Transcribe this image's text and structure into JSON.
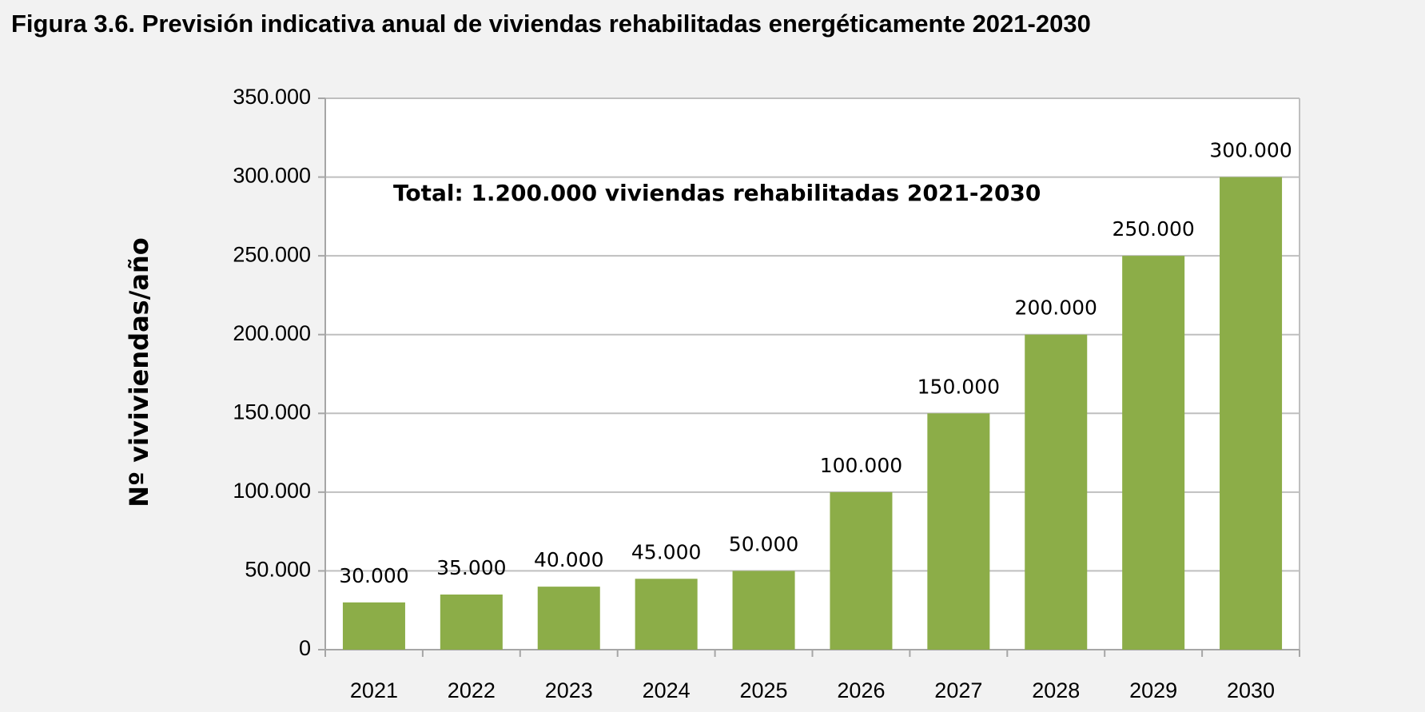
{
  "chart_data": {
    "type": "bar",
    "title": "Figura 3.6. Previsión indicativa anual de viviendas rehabilitadas energéticamente 2021-2030",
    "ylabel": "Nº viviviendas/año",
    "annotation": "Total: 1.200.000 viviendas rehabilitadas 2021-2030",
    "categories": [
      "2021",
      "2022",
      "2023",
      "2024",
      "2025",
      "2026",
      "2027",
      "2028",
      "2029",
      "2030"
    ],
    "values": [
      30000,
      35000,
      40000,
      45000,
      50000,
      100000,
      150000,
      200000,
      250000,
      300000
    ],
    "value_labels": [
      "30.000",
      "35.000",
      "40.000",
      "45.000",
      "50.000",
      "100.000",
      "150.000",
      "200.000",
      "250.000",
      "300.000"
    ],
    "color": "#8cad48",
    "ylim": [
      0,
      350000
    ],
    "yticks": [
      0,
      {
        "value": 50000,
        "label": "50.000"
      },
      {
        "value": 100000,
        "label": "100.000"
      },
      {
        "value": 150000,
        "label": "150.000"
      },
      {
        "value": 200000,
        "label": "200.000"
      },
      {
        "value": 250000,
        "label": "250.000"
      },
      {
        "value": 300000,
        "label": "300.000"
      },
      {
        "value": 350000,
        "label": "350.000"
      }
    ],
    "grid": true
  }
}
